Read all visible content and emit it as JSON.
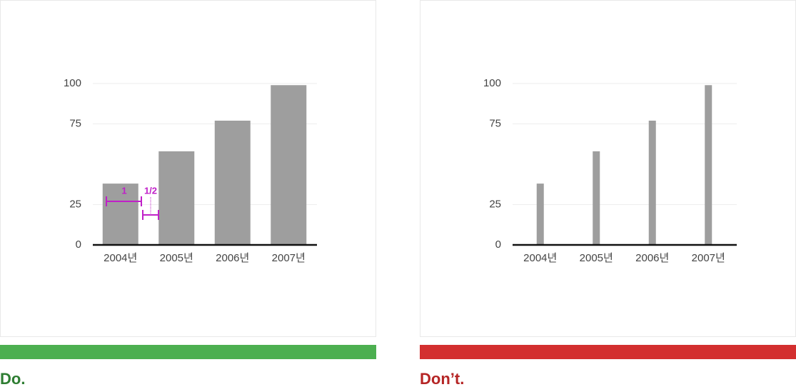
{
  "chart_data": [
    {
      "type": "bar",
      "caption": "Do.",
      "caption_color": "#2e7d32",
      "stripe_color": "#4caf50",
      "categories": [
        "2004년",
        "2005년",
        "2006년",
        "2007년"
      ],
      "values": [
        38,
        58,
        77,
        99
      ],
      "color": "#9e9e9e",
      "ylim": [
        0,
        100
      ],
      "yticks": [
        0,
        25,
        75,
        100
      ],
      "grid": true,
      "annotations": [
        "1",
        "1/2"
      ]
    },
    {
      "type": "bar",
      "caption": "Don’t.",
      "caption_color": "#b52525",
      "stripe_color": "#d32f2f",
      "categories": [
        "2004년",
        "2005년",
        "2006년",
        "2007년"
      ],
      "values": [
        38,
        58,
        77,
        99
      ],
      "color": "#9e9e9e",
      "ylim": [
        0,
        100
      ],
      "yticks": [
        0,
        25,
        75,
        100
      ],
      "grid": true
    }
  ]
}
